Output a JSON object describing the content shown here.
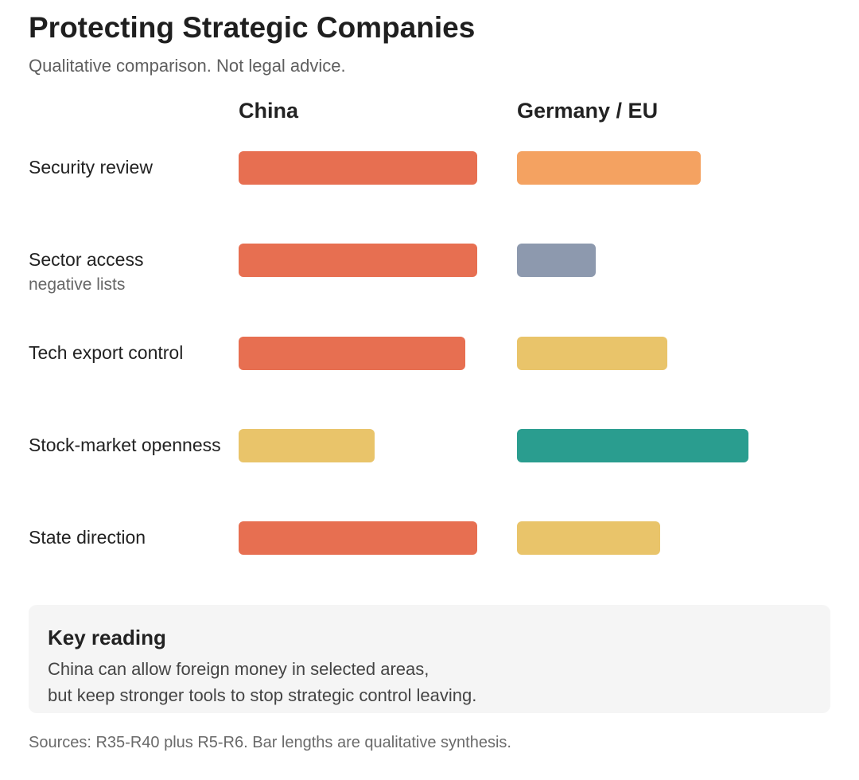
{
  "title": "Protecting Strategic Companies",
  "subtitle": "Qualitative comparison. Not legal advice.",
  "chart_data": {
    "type": "bar",
    "orientation": "horizontal",
    "title": "Protecting Strategic Companies",
    "subtitle": "Qualitative comparison. Not legal advice.",
    "scale": "qualitative (relative bar length, 0-1)",
    "series": [
      {
        "name": "China",
        "values": [
          1.0,
          1.0,
          0.95,
          0.57,
          1.0
        ],
        "colors": [
          "#e76f51",
          "#e76f51",
          "#e76f51",
          "#e9c46a",
          "#e76f51"
        ]
      },
      {
        "name": "Germany / EU",
        "values": [
          0.77,
          0.33,
          0.63,
          0.97,
          0.6
        ],
        "colors": [
          "#f4a261",
          "#8d99ae",
          "#e9c46a",
          "#2a9d8f",
          "#e9c46a"
        ]
      }
    ],
    "categories": [
      {
        "label": "Security review",
        "sublabel": ""
      },
      {
        "label": "Sector access",
        "sublabel": "negative lists"
      },
      {
        "label": "Tech export control",
        "sublabel": ""
      },
      {
        "label": "Stock-market openness",
        "sublabel": ""
      },
      {
        "label": "State direction",
        "sublabel": ""
      }
    ],
    "legend": "column headers",
    "grid": false
  },
  "key_reading": {
    "title": "Key reading",
    "lines": [
      "China can allow foreign money in selected areas,",
      "but keep stronger tools to stop strategic control leaving."
    ]
  },
  "source_note": "Sources: R35-R40 plus R5-R6. Bar lengths are qualitative synthesis."
}
